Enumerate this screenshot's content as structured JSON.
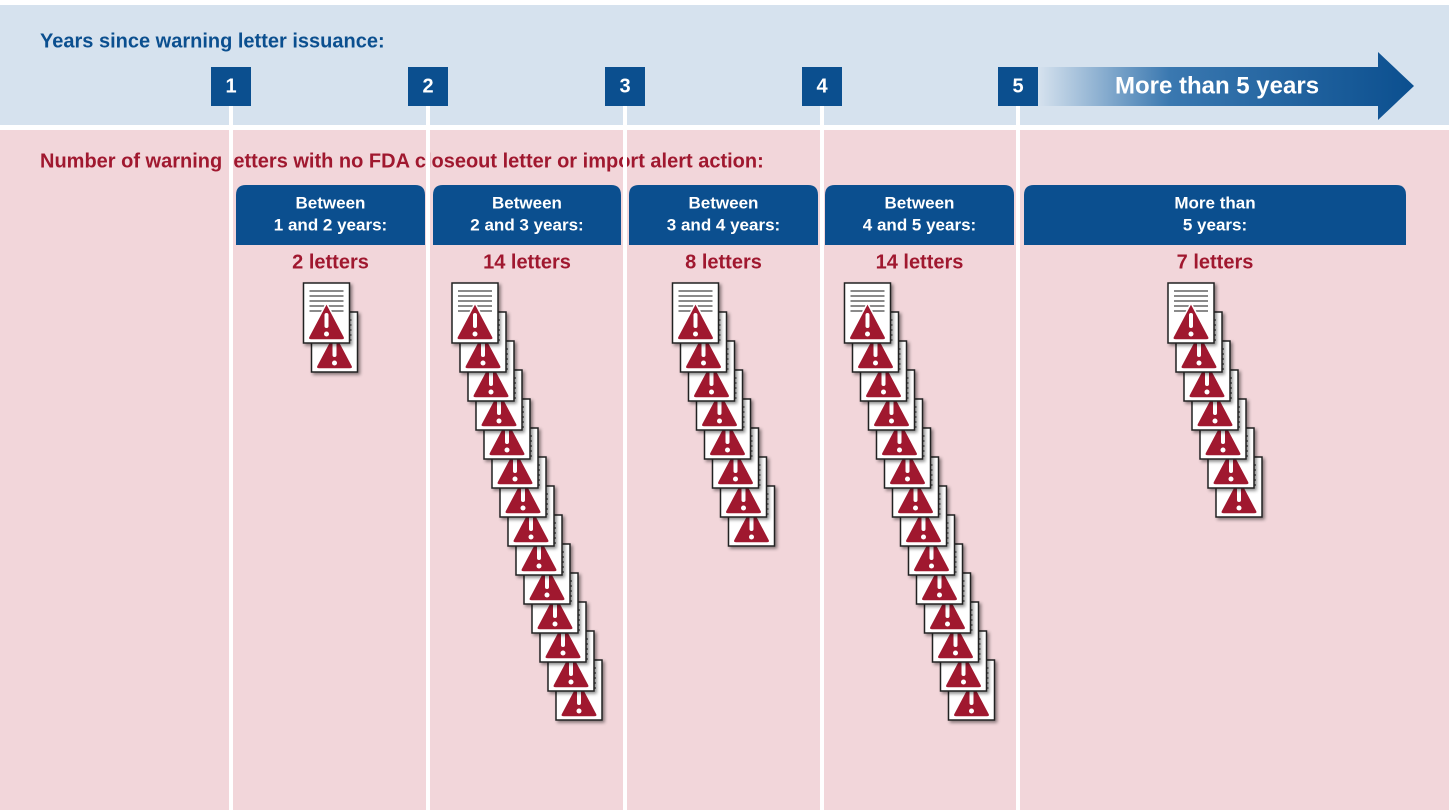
{
  "title": "Years since warning letter issuance:",
  "years": [
    "1",
    "2",
    "3",
    "4",
    "5"
  ],
  "arrow_label": "More than 5 years",
  "subtitle": "Number of warning letters with no FDA closeout letter or import alert action:",
  "groups": [
    {
      "header": [
        "Between",
        "1 and 2 years:"
      ],
      "count": 2,
      "count_label": "2 letters"
    },
    {
      "header": [
        "Between",
        "2 and 3 years:"
      ],
      "count": 14,
      "count_label": "14 letters"
    },
    {
      "header": [
        "Between",
        "3 and 4 years:"
      ],
      "count": 8,
      "count_label": "8 letters"
    },
    {
      "header": [
        "Between",
        "4 and 5 years:"
      ],
      "count": 14,
      "count_label": "14 letters"
    },
    {
      "header": [
        "More than",
        "5 years:"
      ],
      "count": 7,
      "count_label": "7 letters"
    }
  ]
}
